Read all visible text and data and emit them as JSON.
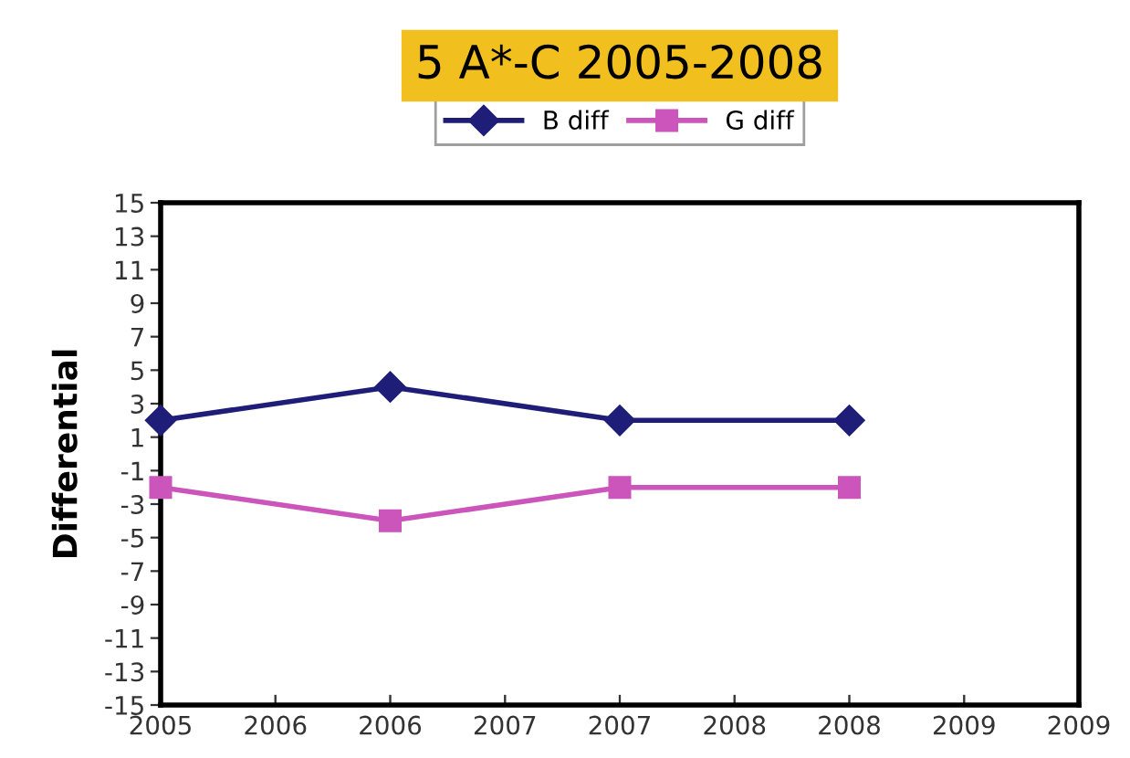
{
  "chart_data": {
    "type": "line",
    "title": "5 A*-C 2005-2008",
    "ylabel": "Differential",
    "x": [
      2005,
      2006,
      2007,
      2008
    ],
    "series": [
      {
        "name": "B diff",
        "color": "#1e1e78",
        "marker": "diamond",
        "values": [
          2,
          4,
          2,
          2
        ]
      },
      {
        "name": "G diff",
        "color": "#cc55bb",
        "marker": "square",
        "values": [
          -2,
          -4,
          -2,
          -2
        ]
      }
    ],
    "xlim": [
      2005,
      2009
    ],
    "xticks": [
      2005,
      {
        "value": 2005.5,
        "label": "2006"
      },
      2006,
      {
        "value": 2006.5,
        "label": "2007"
      },
      2007,
      {
        "value": 2007.5,
        "label": "2008"
      },
      2008,
      {
        "value": 2008.5,
        "label": "2009"
      },
      2009
    ],
    "ylim": [
      -15,
      15
    ],
    "yticks": [
      -15,
      -13,
      -11,
      -9,
      -7,
      -5,
      -3,
      -1,
      1,
      3,
      5,
      7,
      9,
      11,
      13,
      15
    ],
    "grid": false,
    "legend": "top",
    "line_style": "solid"
  }
}
